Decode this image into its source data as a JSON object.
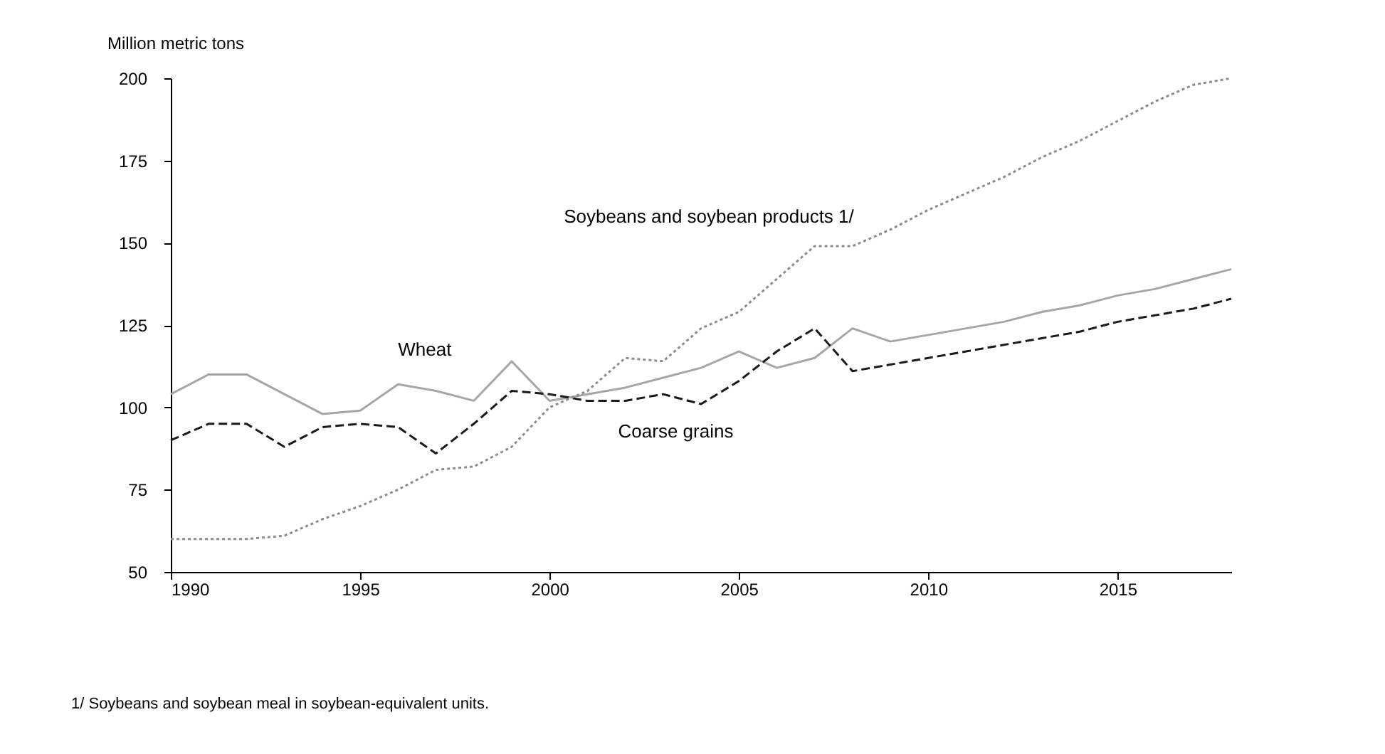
{
  "chart_data": {
    "type": "line",
    "ylabel": "Million metric tons",
    "x": [
      1990,
      1991,
      1992,
      1993,
      1994,
      1995,
      1996,
      1997,
      1998,
      1999,
      2000,
      2001,
      2002,
      2003,
      2004,
      2005,
      2006,
      2007,
      2008,
      2009,
      2010,
      2011,
      2012,
      2013,
      2014,
      2015,
      2016,
      2017,
      2018
    ],
    "series": [
      {
        "name": "Wheat",
        "color": "#a6a6a6",
        "line_style": "solid",
        "values": [
          104,
          110,
          110,
          104,
          98,
          99,
          107,
          105,
          102,
          114,
          102,
          104,
          106,
          109,
          112,
          117,
          112,
          115,
          124,
          120,
          122,
          124,
          126,
          129,
          131,
          134,
          136,
          139,
          142
        ]
      },
      {
        "name": "Coarse grains",
        "color": "#1a1a1a",
        "line_style": "dashed",
        "values": [
          90,
          95,
          95,
          88,
          94,
          95,
          94,
          86,
          95,
          105,
          104,
          102,
          102,
          104,
          101,
          108,
          117,
          124,
          111,
          113,
          115,
          117,
          119,
          121,
          123,
          126,
          128,
          130,
          133
        ]
      },
      {
        "name": "Soybeans and soybean products 1/",
        "color": "#8c8c8c",
        "line_style": "dotted",
        "values": [
          60,
          60,
          60,
          61,
          66,
          70,
          75,
          81,
          82,
          88,
          100,
          105,
          115,
          114,
          124,
          129,
          139,
          149,
          149,
          154,
          160,
          165,
          170,
          176,
          181,
          187,
          193,
          198,
          200
        ]
      }
    ],
    "xlim": [
      1990,
      2018
    ],
    "xticks": [
      1990,
      1995,
      2000,
      2005,
      2010,
      2015
    ],
    "ylim": [
      50,
      200
    ],
    "yticks": [
      50,
      75,
      100,
      125,
      150,
      175,
      200
    ],
    "grid": false,
    "legend": false,
    "annotations": [
      "1/ Soybeans and soybean meal in soybean-equivalent units."
    ]
  }
}
